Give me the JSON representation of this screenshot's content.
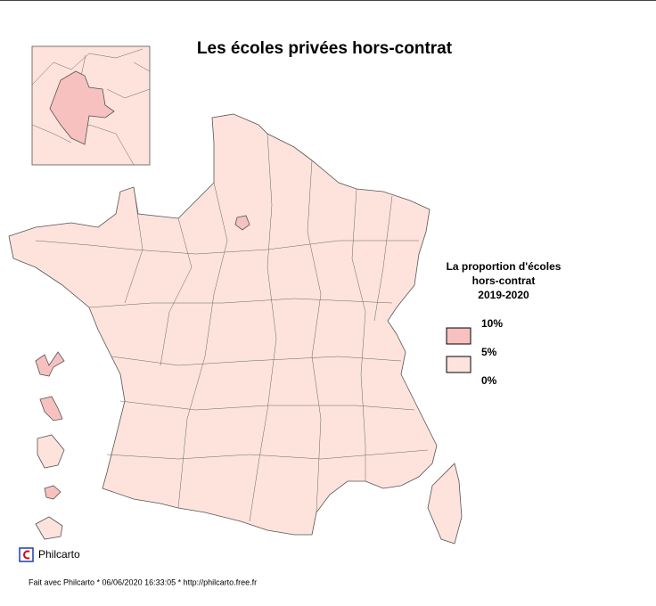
{
  "title": "Les écoles privées hors-contrat",
  "legend": {
    "title": [
      "La proportion d'écoles",
      "hors-contrat",
      "2019-2020"
    ],
    "classes": [
      {
        "color": "#f7c1c0"
      },
      {
        "color": "#fde3db"
      }
    ],
    "breaks": [
      "10%",
      "5%",
      "0%"
    ]
  },
  "logo": "Philcarto",
  "footer": "Fait avec Philcarto * 06/06/2020 16:33:05 * http://philcarto.free.fr"
}
